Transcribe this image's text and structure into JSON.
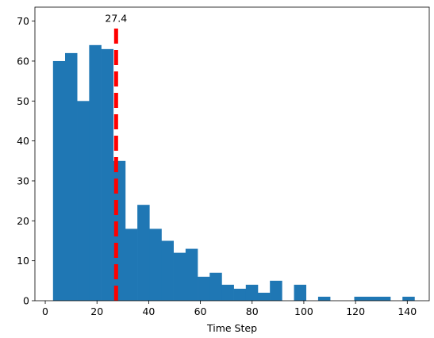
{
  "chart_data": {
    "type": "bar",
    "subtype": "histogram",
    "title": "",
    "xlabel": "Time Step",
    "ylabel": "",
    "xlim": [
      -4,
      148.5
    ],
    "ylim": [
      0,
      73.5
    ],
    "xticks": [
      0,
      20,
      40,
      60,
      80,
      100,
      120,
      140
    ],
    "yticks": [
      0,
      10,
      20,
      30,
      40,
      50,
      60,
      70
    ],
    "grid": false,
    "bar_color": "#1f77b4",
    "bins": {
      "start": 3,
      "width": 4.66,
      "counts": [
        60,
        62,
        50,
        64,
        63,
        35,
        18,
        24,
        18,
        15,
        12,
        13,
        6,
        7,
        4,
        3,
        4,
        2,
        5,
        0,
        4,
        0,
        1,
        0,
        0,
        1,
        1,
        1,
        0,
        1
      ]
    },
    "reference_line": {
      "x": 27.4,
      "color": "#ff0000",
      "style": "dashed",
      "y_top": 69,
      "label": "27.4"
    }
  }
}
